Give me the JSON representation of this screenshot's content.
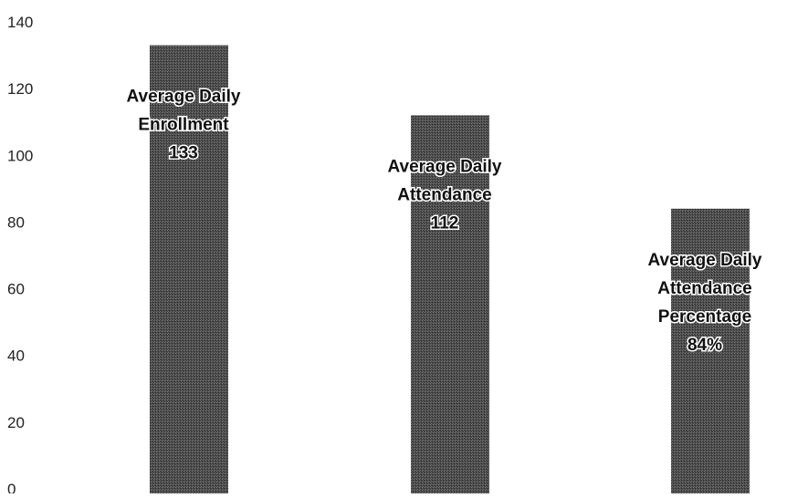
{
  "chart_data": {
    "type": "bar",
    "title": "",
    "xlabel": "",
    "ylabel": "",
    "ylim": [
      0,
      140
    ],
    "yticks": [
      "0",
      "20",
      "40",
      "60",
      "80",
      "100",
      "120",
      "140"
    ],
    "grid": false,
    "legend": "none",
    "bar_color": "#4a4a4a",
    "categories": [
      "Average Daily Enrollment",
      "Average Daily Attendance",
      "Average Daily Attendance Percentage"
    ],
    "values": [
      133,
      112,
      84
    ],
    "data_labels": [
      [
        "Average Daily",
        "Enrollment",
        "133"
      ],
      [
        "Average Daily",
        "Attendance",
        "112"
      ],
      [
        "Average Daily",
        "Attendance",
        "Percentage",
        "84%"
      ]
    ]
  }
}
